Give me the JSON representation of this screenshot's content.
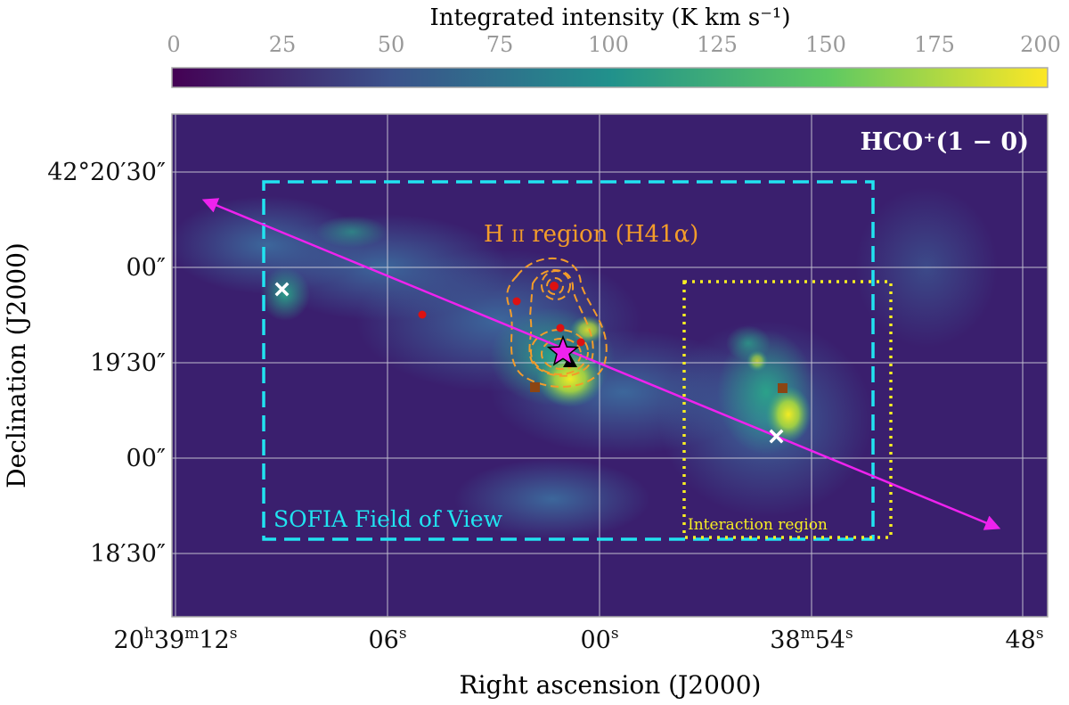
{
  "colorbar": {
    "label": "Integrated intensity (K km s⁻¹)",
    "ticks": [
      "0",
      "25",
      "50",
      "75",
      "100",
      "125",
      "150",
      "175",
      "200"
    ],
    "colormap": [
      "#440154",
      "#3b528b",
      "#21918c",
      "#5ec962",
      "#fde725"
    ]
  },
  "map": {
    "species_label": "HCO⁺(1 − 0)",
    "background_color": "#3a1f6e",
    "xlabel": "Right ascension (J2000)",
    "ylabel": "Declination (J2000)",
    "x_ticks": [
      {
        "main": "20",
        "sup1": "h",
        "mid": "39",
        "sup2": "m",
        "end": "12",
        "sup3": "s"
      },
      {
        "main": "06",
        "sup1": "s"
      },
      {
        "main": "00",
        "sup1": "s"
      },
      {
        "main": "38",
        "sup1": "m",
        "mid": "54",
        "sup2": "s"
      },
      {
        "main": "48",
        "sup1": "s"
      }
    ],
    "y_ticks": [
      "42°20′30″",
      "00″",
      "19′30″",
      "00″",
      "18′30″"
    ]
  },
  "annotations": {
    "hii_label": "H II region (H41α)",
    "sofia_label": "SOFIA Field of View",
    "interaction_label": "Interaction region",
    "colors": {
      "sofia": "#21e3f0",
      "interaction": "#f7ee22",
      "hii": "#f39c2a",
      "arrow": "#ee22ee",
      "star": "#ee22ee",
      "red_points": "#dd1111",
      "brown_squares": "#8b4513",
      "white_crosses": "#ffffff"
    }
  }
}
